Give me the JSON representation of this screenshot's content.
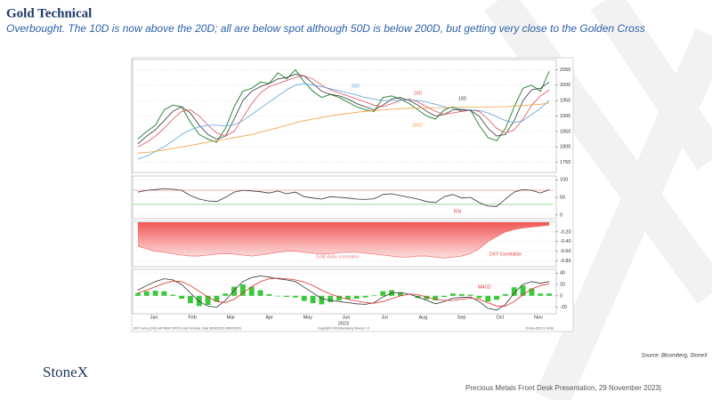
{
  "header": {
    "title": "Gold Technical",
    "subtitle": "Overbought.  The 10D is now above the 20D; all are below spot although 50D is below 200D, but getting very close to the Golden Cross"
  },
  "logo": "StoneX",
  "source": "Source: Bloomberg, StoneX",
  "footer": "Precious Metals Front Desk Presentation, 29 November 2023|",
  "x_axis": {
    "categories": [
      "Jan",
      "Feb",
      "Mar",
      "Apr",
      "May",
      "Jun",
      "Jul",
      "Aug",
      "Sep",
      "Oct",
      "Nov"
    ],
    "label": "2023"
  },
  "chart_notes": [
    "DXY Curncy (DOLLAR INDEX SPOT) Gold Technical, Daily 30DEC2022-29NOV2023",
    "Copyright© 2023 Bloomberg Finance L.P.",
    "29-Nov-2023 11:04:36"
  ],
  "chart_data": [
    {
      "type": "line",
      "ylim": [
        1720,
        2080
      ],
      "yticks": [
        1750,
        1800,
        1850,
        1900,
        1950,
        2000,
        2050
      ],
      "grid": true,
      "series": [
        {
          "name": "Price",
          "color": "#2e8b3a",
          "values": [
            1825,
            1850,
            1870,
            1920,
            1935,
            1930,
            1880,
            1840,
            1825,
            1815,
            1860,
            1930,
            1980,
            1990,
            2010,
            2005,
            2040,
            2020,
            2050,
            2010,
            1980,
            1960,
            1970,
            1960,
            1945,
            1930,
            1920,
            1915,
            1960,
            1965,
            1955,
            1940,
            1920,
            1900,
            1890,
            1920,
            1930,
            1915,
            1920,
            1870,
            1830,
            1820,
            1860,
            1930,
            1990,
            2000,
            1980,
            2045
          ]
        },
        {
          "name": "10D",
          "color": "#333333",
          "values": [
            1810,
            1835,
            1855,
            1885,
            1915,
            1930,
            1910,
            1870,
            1840,
            1825,
            1835,
            1890,
            1950,
            1980,
            1995,
            2005,
            2020,
            2025,
            2035,
            2030,
            2005,
            1980,
            1970,
            1965,
            1955,
            1940,
            1930,
            1920,
            1935,
            1955,
            1960,
            1950,
            1935,
            1915,
            1900,
            1905,
            1920,
            1920,
            1918,
            1900,
            1860,
            1835,
            1840,
            1885,
            1950,
            1985,
            1990,
            2010
          ]
        },
        {
          "name": "20D",
          "color": "#e0505a",
          "values": [
            1800,
            1815,
            1835,
            1860,
            1890,
            1915,
            1920,
            1900,
            1870,
            1845,
            1835,
            1850,
            1895,
            1940,
            1975,
            1995,
            2005,
            2015,
            2025,
            2030,
            2020,
            2000,
            1985,
            1975,
            1965,
            1955,
            1945,
            1935,
            1930,
            1940,
            1950,
            1955,
            1945,
            1930,
            1915,
            1905,
            1910,
            1915,
            1920,
            1915,
            1890,
            1860,
            1845,
            1855,
            1890,
            1935,
            1965,
            1985
          ]
        },
        {
          "name": "50D",
          "color": "#5aa0d8",
          "values": [
            1760,
            1770,
            1785,
            1800,
            1820,
            1840,
            1855,
            1865,
            1870,
            1870,
            1868,
            1872,
            1885,
            1905,
            1925,
            1945,
            1965,
            1985,
            2000,
            2005,
            2000,
            1995,
            1988,
            1982,
            1975,
            1968,
            1960,
            1955,
            1950,
            1950,
            1950,
            1952,
            1950,
            1945,
            1938,
            1930,
            1925,
            1922,
            1920,
            1918,
            1910,
            1898,
            1885,
            1878,
            1885,
            1905,
            1925,
            1950
          ]
        },
        {
          "name": "200D",
          "color": "#f0a040",
          "values": [
            1780,
            1782,
            1785,
            1790,
            1795,
            1800,
            1805,
            1810,
            1815,
            1820,
            1825,
            1830,
            1835,
            1840,
            1848,
            1855,
            1862,
            1870,
            1878,
            1885,
            1890,
            1895,
            1900,
            1905,
            1908,
            1912,
            1915,
            1918,
            1920,
            1922,
            1924,
            1925,
            1926,
            1926,
            1927,
            1927,
            1928,
            1928,
            1929,
            1929,
            1929,
            1930,
            1930,
            1932,
            1934,
            1936,
            1938,
            1942
          ]
        }
      ],
      "annotations": [
        {
          "text": "50D",
          "color": "#5aa0d8"
        },
        {
          "text": "20D",
          "color": "#e0505a"
        },
        {
          "text": "10D",
          "color": "#333333"
        },
        {
          "text": "200D",
          "color": "#f0a040"
        }
      ]
    },
    {
      "type": "line",
      "ylim": [
        -8,
        108
      ],
      "yticks": [
        0,
        50,
        100
      ],
      "grid": true,
      "reference_lines": [
        {
          "value": 70,
          "color": "#f08080"
        },
        {
          "value": 30,
          "color": "#5cc05c"
        }
      ],
      "series": [
        {
          "name": "RSI",
          "color": "#333333",
          "values": [
            65,
            70,
            72,
            75,
            73,
            70,
            55,
            45,
            40,
            38,
            50,
            65,
            70,
            68,
            66,
            62,
            68,
            60,
            65,
            52,
            48,
            45,
            52,
            50,
            48,
            45,
            44,
            46,
            58,
            60,
            55,
            50,
            45,
            38,
            35,
            52,
            58,
            48,
            50,
            35,
            25,
            24,
            45,
            65,
            72,
            70,
            62,
            72
          ]
        }
      ],
      "annotations": [
        {
          "text": "RSI",
          "color": "#e03030"
        }
      ]
    },
    {
      "type": "area",
      "ylim": [
        -0.9,
        0
      ],
      "yticks": [
        {
          "value": -0.8,
          "label": "-0.80"
        },
        {
          "value": -0.6,
          "label": "-0.60"
        },
        {
          "value": -0.4,
          "label": "-0.40"
        },
        {
          "value": -0.2,
          "label": "-0.20"
        }
      ],
      "grid": true,
      "series": [
        {
          "name": "DXY Correlation",
          "color": "#f06060",
          "values": [
            -0.5,
            -0.55,
            -0.6,
            -0.62,
            -0.65,
            -0.68,
            -0.7,
            -0.7,
            -0.68,
            -0.66,
            -0.65,
            -0.66,
            -0.68,
            -0.7,
            -0.68,
            -0.65,
            -0.62,
            -0.6,
            -0.6,
            -0.62,
            -0.64,
            -0.66,
            -0.65,
            -0.63,
            -0.62,
            -0.62,
            -0.64,
            -0.66,
            -0.68,
            -0.7,
            -0.72,
            -0.72,
            -0.7,
            -0.7,
            -0.72,
            -0.74,
            -0.72,
            -0.7,
            -0.65,
            -0.55,
            -0.4,
            -0.3,
            -0.2,
            -0.15,
            -0.12,
            -0.1,
            -0.08,
            -0.06
          ]
        }
      ],
      "annotations": [
        {
          "text": "Gold dollar correlation",
          "color": "#f08080"
        },
        {
          "text": "DXY Correlation",
          "color": "#e03030"
        }
      ]
    },
    {
      "type": "line",
      "ylim": [
        -30,
        45
      ],
      "yticks": [
        -20,
        0,
        20,
        40
      ],
      "grid": true,
      "series": [
        {
          "name": "Histogram",
          "kind": "bar",
          "color": "#3cc83c",
          "values": [
            5,
            8,
            9,
            8,
            2,
            -5,
            -13,
            -18,
            -16,
            -10,
            4,
            16,
            20,
            16,
            10,
            3,
            -1,
            -2,
            -3,
            -9,
            -13,
            -15,
            -11,
            -8,
            -6,
            -5,
            -3,
            1,
            8,
            10,
            6,
            0,
            -4,
            -6,
            -8,
            -2,
            4,
            3,
            2,
            -4,
            -10,
            -7,
            3,
            15,
            18,
            13,
            4,
            4
          ]
        },
        {
          "name": "MACD",
          "color": "#333333",
          "values": [
            10,
            18,
            25,
            30,
            28,
            20,
            5,
            -10,
            -18,
            -20,
            -8,
            10,
            25,
            32,
            35,
            33,
            30,
            28,
            25,
            15,
            5,
            -5,
            -8,
            -10,
            -12,
            -14,
            -15,
            -12,
            -2,
            5,
            6,
            3,
            -2,
            -8,
            -14,
            -10,
            -4,
            -3,
            -2,
            -10,
            -22,
            -25,
            -15,
            5,
            20,
            25,
            22,
            25
          ]
        },
        {
          "name": "Signal",
          "color": "#e03030",
          "values": [
            5,
            10,
            16,
            22,
            26,
            25,
            18,
            8,
            -2,
            -10,
            -12,
            -6,
            5,
            16,
            25,
            30,
            31,
            30,
            28,
            24,
            18,
            10,
            3,
            -2,
            -6,
            -9,
            -12,
            -13,
            -10,
            -5,
            0,
            3,
            2,
            -2,
            -6,
            -8,
            -8,
            -6,
            -4,
            -6,
            -12,
            -18,
            -18,
            -10,
            2,
            12,
            18,
            21
          ]
        }
      ],
      "annotations": [
        {
          "text": "MACD",
          "color": "#e03030"
        }
      ]
    }
  ]
}
